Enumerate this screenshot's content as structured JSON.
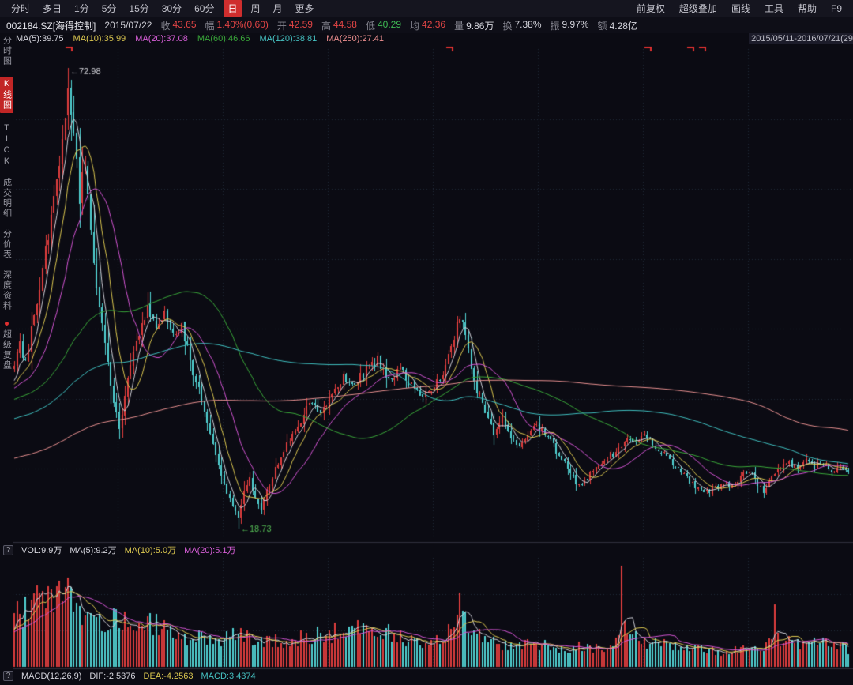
{
  "ui": {
    "help_glyph": "?"
  },
  "colors": {
    "bg": "#0b0b13",
    "toolbar_bg": "#15151f",
    "grid": "#232b3a",
    "divider": "#30303e",
    "up": "#e03e3e",
    "down": "#52d2d2",
    "red": "#e03030",
    "green": "#3fba54",
    "text": "#c8c8c8",
    "label": "#84848f",
    "annotation_high": "#d8d8de",
    "annotation_low": "#55bb55"
  },
  "toolbar": {
    "periods": [
      "分时",
      "多日",
      "1分",
      "5分",
      "15分",
      "30分",
      "60分",
      "日",
      "周",
      "月",
      "更多"
    ],
    "active_period": "日",
    "right_items": [
      "前复权",
      "超级叠加",
      "画线",
      "工具",
      "帮助",
      "F9"
    ]
  },
  "info_bar": {
    "code": "002184.SZ[海得控制]",
    "date": "2015/07/22",
    "fields": [
      {
        "label": "收",
        "value": "43.65",
        "tone": "red"
      },
      {
        "label": "幅",
        "value": "1.40%(0.60)",
        "tone": "red"
      },
      {
        "label": "开",
        "value": "42.59",
        "tone": "red"
      },
      {
        "label": "高",
        "value": "44.58",
        "tone": "red"
      },
      {
        "label": "低",
        "value": "40.29",
        "tone": "green"
      },
      {
        "label": "均",
        "value": "42.36",
        "tone": "red"
      },
      {
        "label": "量",
        "value": "9.86万",
        "tone": "white"
      },
      {
        "label": "换",
        "value": "7.38%",
        "tone": "white"
      },
      {
        "label": "振",
        "value": "9.97%",
        "tone": "white"
      },
      {
        "label": "额",
        "value": "4.28亿",
        "tone": "white"
      }
    ]
  },
  "ma_legend": {
    "items": [
      "MA(5):39.75",
      "MA(10):35.99",
      "MA(20):37.08",
      "MA(60):46.66",
      "MA(120):38.81",
      "MA(250):27.41"
    ],
    "range_label": "2015/05/11-2016/07/21(29"
  },
  "sidebar": {
    "items": [
      "分时图",
      "K线图",
      "TICK",
      "成交明细",
      "分价表",
      "深度资料",
      "超级复盘"
    ],
    "active": "K线图"
  },
  "volume_legend": {
    "items": [
      "VOL:9.9万",
      "MA(5):9.2万",
      "MA(10):5.0万",
      "MA(20):5.1万"
    ]
  },
  "macd_legend": {
    "items": [
      "MACD(12,26,9)",
      "DIF:-2.5376",
      "DEA:-4.2563",
      "MACD:3.4374"
    ]
  },
  "chart_data": {
    "type": "candlestick",
    "symbol": "002184.SZ",
    "name": "海得控制",
    "date_range": "2015/05/11-2016/07/21",
    "bars": 295,
    "seed": 7,
    "header_ohlc": {
      "date": "2015/07/22",
      "open": 42.59,
      "high": 44.58,
      "low": 40.29,
      "close": 43.65,
      "avg": 42.36,
      "change_pct": "1.40%",
      "change": "0.60",
      "volume": "9.86万",
      "turnover": "7.38%",
      "amplitude": "9.97%",
      "amount": "4.28亿"
    },
    "ma_values": {
      "MA5": 39.75,
      "MA10": 35.99,
      "MA20": 37.08,
      "MA60": 46.66,
      "MA120": 38.81,
      "MA250": 27.41
    },
    "vol_values": {
      "VOL": "9.9万",
      "MA5": "9.2万",
      "MA10": "5.0万",
      "MA20": "5.1万"
    },
    "macd_values": {
      "params": "12,26,9",
      "DIF": -2.5376,
      "DEA": -4.2563,
      "MACD": 3.4374
    },
    "high_annotation": {
      "bar": 19,
      "value": 72.98,
      "label": "72.98"
    },
    "low_annotation": {
      "bar": 79,
      "value": 18.73,
      "label": "18.73"
    },
    "arrow_glyph": "←",
    "ma_periods": [
      5,
      10,
      20,
      60,
      120,
      250
    ],
    "ma_colors": [
      "#d0d0d8",
      "#dcc850",
      "#d455d4",
      "#3aa83a",
      "#3fbfbf",
      "#e89090"
    ],
    "vol_ma_periods": [
      5,
      10,
      20
    ],
    "vol_ma_colors": [
      "#d0d0d8",
      "#dcc850",
      "#d455d4"
    ],
    "top_markers": [
      19,
      153,
      223,
      238,
      242
    ],
    "close_anchors": [
      [
        0,
        38.5
      ],
      [
        2,
        40.5
      ],
      [
        4,
        38.0
      ],
      [
        6,
        42.0
      ],
      [
        9,
        47.0
      ],
      [
        12,
        53.5
      ],
      [
        15,
        59.0
      ],
      [
        17,
        64.5
      ],
      [
        19,
        69.5
      ],
      [
        21,
        65.0
      ],
      [
        23,
        57.5
      ],
      [
        25,
        62.0
      ],
      [
        27,
        54.0
      ],
      [
        29,
        47.5
      ],
      [
        31,
        42.5
      ],
      [
        33,
        38.0
      ],
      [
        35,
        33.5
      ],
      [
        37,
        30.5
      ],
      [
        39,
        34.5
      ],
      [
        41,
        37.5
      ],
      [
        43,
        40.5
      ],
      [
        45,
        43.0
      ],
      [
        47,
        44.5
      ],
      [
        50,
        42.0
      ],
      [
        53,
        44.0
      ],
      [
        56,
        41.5
      ],
      [
        59,
        42.5
      ],
      [
        62,
        38.5
      ],
      [
        65,
        35.0
      ],
      [
        68,
        31.0
      ],
      [
        71,
        27.5
      ],
      [
        74,
        24.0
      ],
      [
        77,
        21.5
      ],
      [
        79,
        19.8
      ],
      [
        81,
        23.0
      ],
      [
        83,
        24.5
      ],
      [
        85,
        22.5
      ],
      [
        87,
        21.2
      ],
      [
        90,
        24.0
      ],
      [
        93,
        26.5
      ],
      [
        96,
        28.5
      ],
      [
        100,
        31.0
      ],
      [
        104,
        33.5
      ],
      [
        108,
        32.0
      ],
      [
        112,
        35.0
      ],
      [
        116,
        36.5
      ],
      [
        120,
        35.5
      ],
      [
        124,
        37.5
      ],
      [
        128,
        38.5
      ],
      [
        132,
        36.5
      ],
      [
        136,
        37.5
      ],
      [
        140,
        35.5
      ],
      [
        144,
        34.5
      ],
      [
        148,
        35.5
      ],
      [
        152,
        37.5
      ],
      [
        155,
        41.0
      ],
      [
        157,
        44.0
      ],
      [
        159,
        41.5
      ],
      [
        161,
        38.0
      ],
      [
        163,
        35.0
      ],
      [
        166,
        32.5
      ],
      [
        169,
        30.0
      ],
      [
        172,
        31.5
      ],
      [
        175,
        29.5
      ],
      [
        178,
        28.2
      ],
      [
        181,
        30.0
      ],
      [
        184,
        31.0
      ],
      [
        187,
        30.0
      ],
      [
        190,
        28.5
      ],
      [
        193,
        27.0
      ],
      [
        196,
        25.2
      ],
      [
        199,
        23.6
      ],
      [
        202,
        24.6
      ],
      [
        205,
        26.0
      ],
      [
        208,
        27.0
      ],
      [
        211,
        27.6
      ],
      [
        214,
        28.6
      ],
      [
        217,
        29.4
      ],
      [
        220,
        29.0
      ],
      [
        223,
        29.6
      ],
      [
        226,
        28.4
      ],
      [
        229,
        27.4
      ],
      [
        232,
        26.4
      ],
      [
        235,
        25.4
      ],
      [
        238,
        24.4
      ],
      [
        241,
        23.4
      ],
      [
        244,
        23.0
      ],
      [
        247,
        23.6
      ],
      [
        250,
        24.1
      ],
      [
        253,
        23.6
      ],
      [
        256,
        24.6
      ],
      [
        259,
        25.6
      ],
      [
        262,
        24.1
      ],
      [
        264,
        23.1
      ],
      [
        267,
        24.6
      ],
      [
        270,
        26.1
      ],
      [
        273,
        26.6
      ],
      [
        276,
        26.1
      ],
      [
        279,
        26.6
      ],
      [
        282,
        26.1
      ],
      [
        285,
        26.6
      ],
      [
        288,
        25.6
      ],
      [
        291,
        25.9
      ],
      [
        294,
        25.4
      ]
    ],
    "volume_anchors": [
      [
        0,
        10
      ],
      [
        5,
        12
      ],
      [
        10,
        14
      ],
      [
        15,
        13
      ],
      [
        19,
        16
      ],
      [
        23,
        12
      ],
      [
        30,
        10
      ],
      [
        37,
        9
      ],
      [
        45,
        8
      ],
      [
        53,
        9
      ],
      [
        60,
        6
      ],
      [
        70,
        5
      ],
      [
        79,
        7
      ],
      [
        85,
        5
      ],
      [
        95,
        5
      ],
      [
        105,
        6
      ],
      [
        116,
        7
      ],
      [
        128,
        8
      ],
      [
        136,
        6
      ],
      [
        144,
        5
      ],
      [
        150,
        5
      ],
      [
        155,
        10
      ],
      [
        157,
        13
      ],
      [
        161,
        8
      ],
      [
        166,
        5
      ],
      [
        175,
        4
      ],
      [
        184,
        4.5
      ],
      [
        193,
        3.5
      ],
      [
        199,
        4
      ],
      [
        208,
        3.5
      ],
      [
        213,
        6
      ],
      [
        214,
        19
      ],
      [
        215,
        7
      ],
      [
        223,
        5
      ],
      [
        231,
        4
      ],
      [
        241,
        3.5
      ],
      [
        250,
        3
      ],
      [
        259,
        4
      ],
      [
        264,
        3.5
      ],
      [
        267,
        5
      ],
      [
        268,
        15
      ],
      [
        269,
        6
      ],
      [
        278,
        4
      ],
      [
        285,
        5
      ],
      [
        290,
        4
      ],
      [
        294,
        3.5
      ]
    ]
  }
}
